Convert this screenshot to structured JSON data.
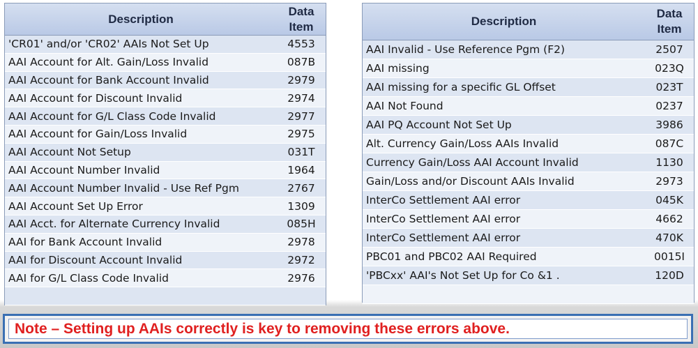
{
  "left_table": {
    "headers": {
      "description": "Description",
      "data_item_line1": "Data",
      "data_item_line2": "Item"
    },
    "rows": [
      {
        "description": "'CR01' and/or 'CR02' AAIs Not Set Up",
        "data_item": "4553"
      },
      {
        "description": "AAI Account for Alt. Gain/Loss Invalid",
        "data_item": "087B"
      },
      {
        "description": "AAI Account for Bank Account Invalid",
        "data_item": "2979"
      },
      {
        "description": "AAI Account for Discount Invalid",
        "data_item": "2974"
      },
      {
        "description": "AAI Account for G/L Class Code Invalid",
        "data_item": "2977"
      },
      {
        "description": "AAI Account for Gain/Loss Invalid",
        "data_item": "2975"
      },
      {
        "description": "AAI Account Not Setup",
        "data_item": "031T"
      },
      {
        "description": "AAI Account Number Invalid",
        "data_item": "1964"
      },
      {
        "description": "AAI Account Number Invalid - Use Ref Pgm",
        "data_item": "2767"
      },
      {
        "description": "AAI Account Set Up Error",
        "data_item": "1309"
      },
      {
        "description": "AAI Acct. for Alternate Currency Invalid",
        "data_item": "085H"
      },
      {
        "description": "AAI for Bank Account Invalid",
        "data_item": "2978"
      },
      {
        "description": "AAI for Discount Account Invalid",
        "data_item": "2972"
      },
      {
        "description": "AAI for G/L Class Code Invalid",
        "data_item": "2976"
      },
      {
        "description": "",
        "data_item": ""
      }
    ]
  },
  "right_table": {
    "headers": {
      "description": "Description",
      "data_item_line1": "Data",
      "data_item_line2": "Item"
    },
    "rows": [
      {
        "description": "AAI Invalid - Use Reference Pgm (F2)",
        "data_item": "2507"
      },
      {
        "description": "AAI missing",
        "data_item": "023Q"
      },
      {
        "description": "AAI missing for a specific GL Offset",
        "data_item": "023T"
      },
      {
        "description": "AAI Not Found",
        "data_item": "0237"
      },
      {
        "description": "AAI PQ Account Not Set Up",
        "data_item": "3986"
      },
      {
        "description": "Alt. Currency Gain/Loss AAIs Invalid",
        "data_item": "087C"
      },
      {
        "description": "Currency Gain/Loss AAI Account Invalid",
        "data_item": "1130"
      },
      {
        "description": "Gain/Loss and/or Discount AAIs Invalid",
        "data_item": "2973"
      },
      {
        "description": "InterCo Settlement AAI error",
        "data_item": "045K"
      },
      {
        "description": "InterCo Settlement AAI error",
        "data_item": "4662"
      },
      {
        "description": "InterCo Settlement AAI error",
        "data_item": "470K"
      },
      {
        "description": "PBC01 and PBC02 AAI Required",
        "data_item": "0015I"
      },
      {
        "description": "'PBCxx' AAI's Not Set Up for Co &1 .",
        "data_item": "120D"
      },
      {
        "description": "",
        "data_item": ""
      }
    ]
  },
  "note": {
    "text": "Note – Setting up AAIs correctly is key to removing these errors above."
  }
}
